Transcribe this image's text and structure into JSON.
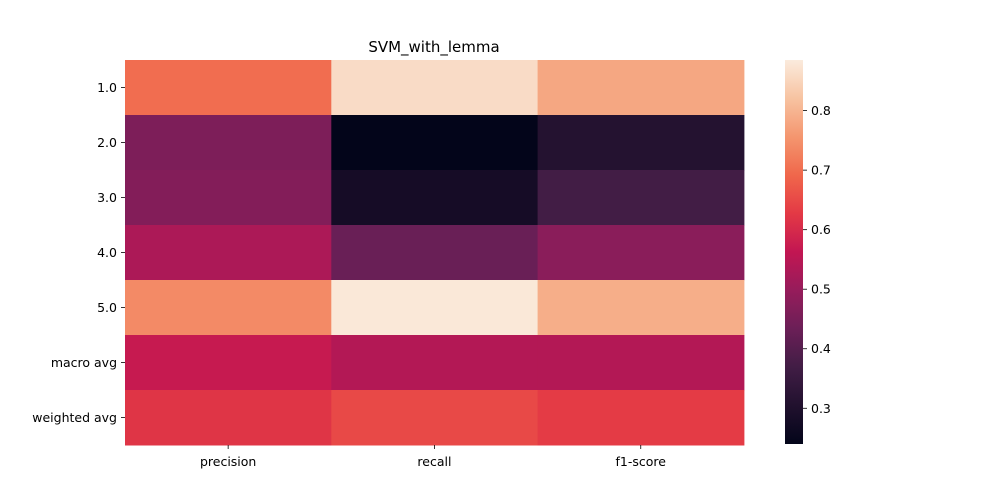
{
  "chart_data": {
    "type": "heatmap",
    "title": "SVM_with_lemma",
    "xlabel": "",
    "ylabel": "",
    "columns": [
      "precision",
      "recall",
      "f1-score"
    ],
    "rows": [
      "1.0",
      "2.0",
      "3.0",
      "4.0",
      "5.0",
      "macro avg",
      "weighted avg"
    ],
    "values": [
      [
        0.7,
        0.86,
        0.78
      ],
      [
        0.46,
        0.24,
        0.31
      ],
      [
        0.47,
        0.28,
        0.37
      ],
      [
        0.53,
        0.43,
        0.48
      ],
      [
        0.74,
        0.88,
        0.79
      ],
      [
        0.57,
        0.54,
        0.54
      ],
      [
        0.62,
        0.65,
        0.63
      ]
    ],
    "colorbar": {
      "vmin": 0.24,
      "vmax": 0.885,
      "ticks": [
        "0.3",
        "0.4",
        "0.5",
        "0.6",
        "0.7",
        "0.8"
      ],
      "colormap": "rocket"
    }
  }
}
